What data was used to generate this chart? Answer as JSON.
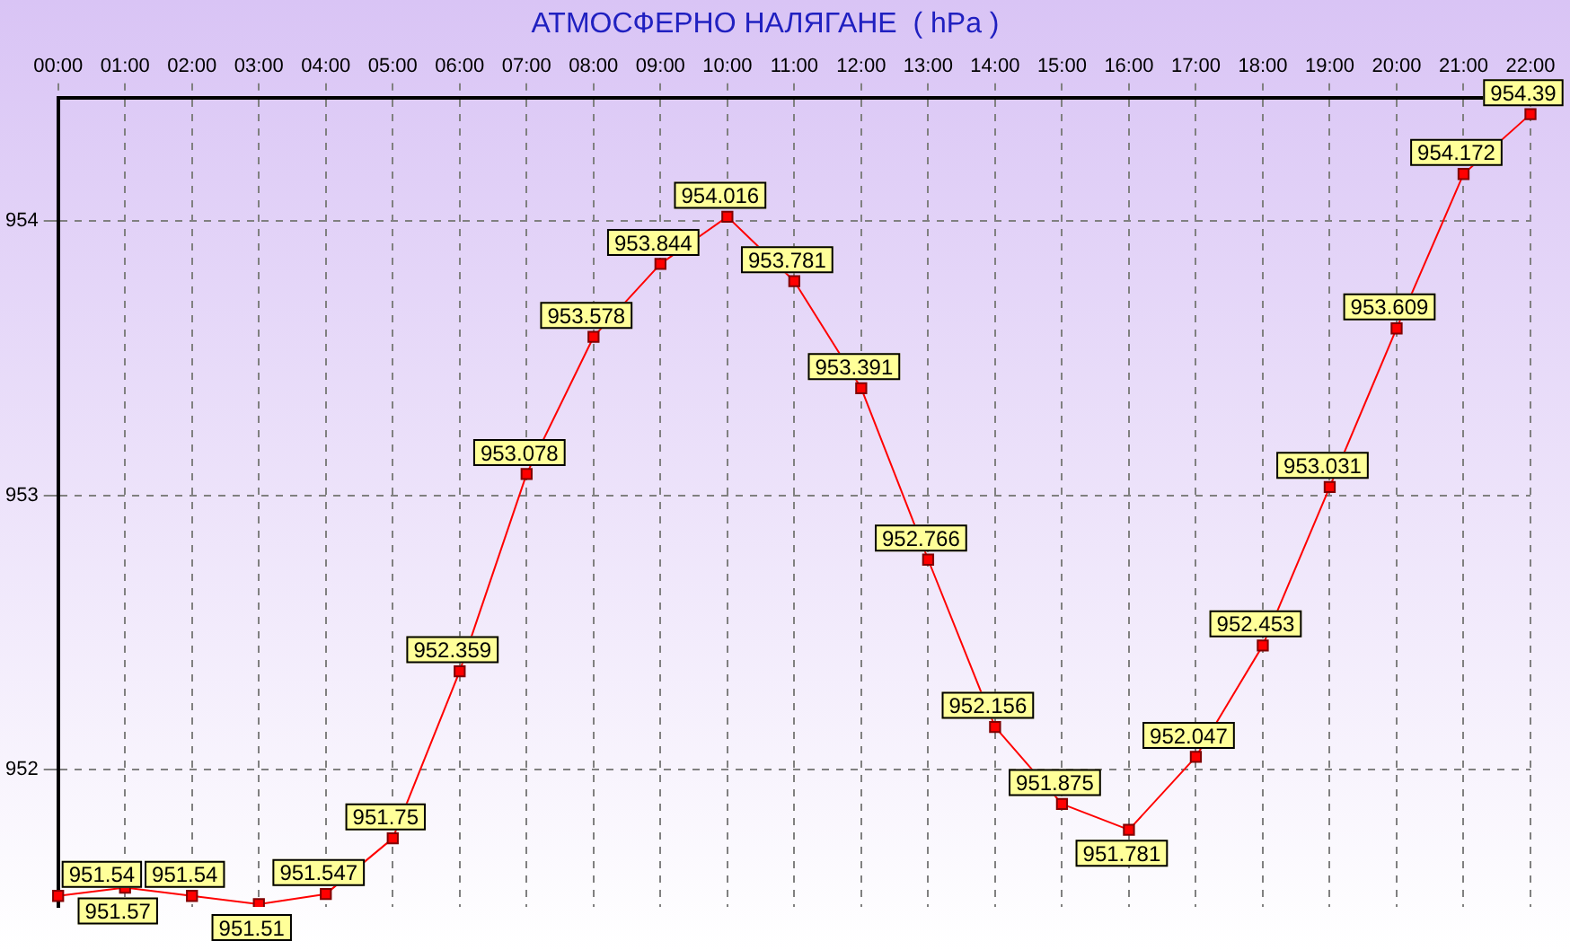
{
  "chart_data": {
    "type": "line",
    "title": "АТМОСФЕРНО НАЛЯГАНЕ  ( hPa )",
    "categories": [
      "00:00",
      "01:00",
      "02:00",
      "03:00",
      "04:00",
      "05:00",
      "06:00",
      "07:00",
      "08:00",
      "09:00",
      "10:00",
      "11:00",
      "12:00",
      "13:00",
      "14:00",
      "15:00",
      "16:00",
      "17:00",
      "18:00",
      "19:00",
      "20:00",
      "21:00",
      "22:00"
    ],
    "series": [
      {
        "color": "#ff0000",
        "values": [
          951.54,
          951.57,
          951.54,
          951.51,
          951.547,
          951.75,
          952.359,
          953.078,
          953.578,
          953.844,
          954.016,
          953.781,
          953.391,
          952.766,
          952.156,
          951.875,
          951.781,
          952.047,
          952.453,
          953.031,
          953.609,
          954.172,
          954.39
        ]
      }
    ],
    "ylim": [
      951.5,
      954.45
    ],
    "yticks": [
      952,
      953,
      954
    ],
    "grid": true,
    "legend": false,
    "marker": "square",
    "line_style": "solid",
    "data_labels": true
  }
}
